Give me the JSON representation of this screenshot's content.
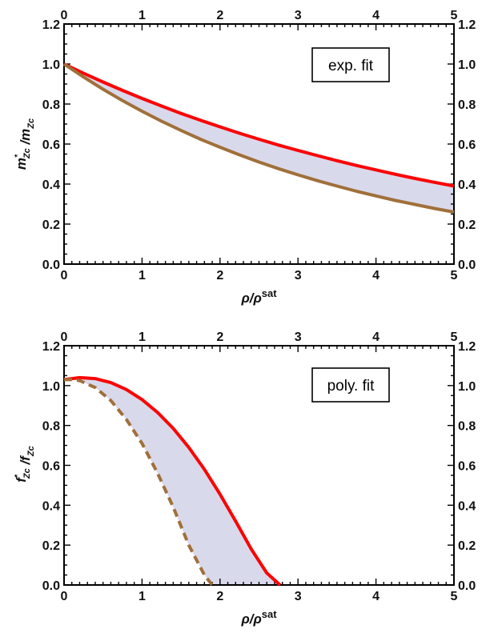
{
  "chart_data": [
    {
      "type": "line",
      "title": "",
      "xlabel": "ρ/ρ^sat",
      "ylabel": "m*_Zc / m_Zc",
      "xlim": [
        0,
        5
      ],
      "ylim": [
        0,
        1.2
      ],
      "x_ticks": [
        "0",
        "1",
        "2",
        "3",
        "4",
        "5"
      ],
      "y_ticks": [
        "0.0",
        "0.2",
        "0.4",
        "0.6",
        "0.8",
        "1.0",
        "1.2"
      ],
      "legend_box": "exp. fit",
      "legend_position": "top-right",
      "band_color": "#d9d9ec",
      "series": [
        {
          "color": "#ff0000",
          "dashed": false,
          "x": [
            0,
            0.25,
            0.5,
            0.75,
            1,
            1.25,
            1.5,
            1.75,
            2,
            2.25,
            2.5,
            2.75,
            3,
            3.25,
            3.5,
            3.75,
            4,
            4.25,
            4.5,
            4.75,
            5
          ],
          "y": [
            1.0,
            0.954,
            0.91,
            0.868,
            0.828,
            0.79,
            0.753,
            0.719,
            0.686,
            0.654,
            0.624,
            0.595,
            0.568,
            0.542,
            0.517,
            0.493,
            0.471,
            0.449,
            0.428,
            0.409,
            0.39
          ]
        },
        {
          "color": "#a0703a",
          "dashed": false,
          "x": [
            0,
            0.25,
            0.5,
            0.75,
            1,
            1.25,
            1.5,
            1.75,
            2,
            2.25,
            2.5,
            2.75,
            3,
            3.25,
            3.5,
            3.75,
            4,
            4.25,
            4.5,
            4.75,
            5
          ],
          "y": [
            1.0,
            0.935,
            0.874,
            0.817,
            0.764,
            0.714,
            0.668,
            0.624,
            0.584,
            0.546,
            0.51,
            0.477,
            0.446,
            0.417,
            0.39,
            0.364,
            0.341,
            0.318,
            0.298,
            0.278,
            0.26
          ]
        }
      ]
    },
    {
      "type": "line",
      "title": "",
      "xlabel": "ρ/ρ^sat",
      "ylabel": "f*_Zc / f_Zc",
      "xlim": [
        0,
        5
      ],
      "ylim": [
        0,
        1.2
      ],
      "x_ticks": [
        "0",
        "1",
        "2",
        "3",
        "4",
        "5"
      ],
      "y_ticks": [
        "0.0",
        "0.2",
        "0.4",
        "0.6",
        "0.8",
        "1.0",
        "1.2"
      ],
      "legend_box": "poly. fit",
      "legend_position": "top-right",
      "band_color": "#d9d9ec",
      "series": [
        {
          "color": "#ff0000",
          "dashed": false,
          "x": [
            0,
            0.2,
            0.4,
            0.6,
            0.8,
            1.0,
            1.2,
            1.4,
            1.6,
            1.8,
            2.0,
            2.2,
            2.4,
            2.6,
            2.77
          ],
          "y": [
            1.03,
            1.04,
            1.035,
            1.015,
            0.98,
            0.93,
            0.865,
            0.785,
            0.69,
            0.58,
            0.455,
            0.32,
            0.18,
            0.06,
            0.0
          ]
        },
        {
          "color": "#a0703a",
          "dashed": true,
          "x": [
            0,
            0.1,
            0.2,
            0.4,
            0.6,
            0.8,
            1.0,
            1.2,
            1.4,
            1.6,
            1.8,
            1.9
          ],
          "y": [
            1.03,
            1.03,
            1.025,
            0.99,
            0.925,
            0.83,
            0.71,
            0.56,
            0.39,
            0.2,
            0.05,
            0.0
          ]
        }
      ]
    }
  ]
}
